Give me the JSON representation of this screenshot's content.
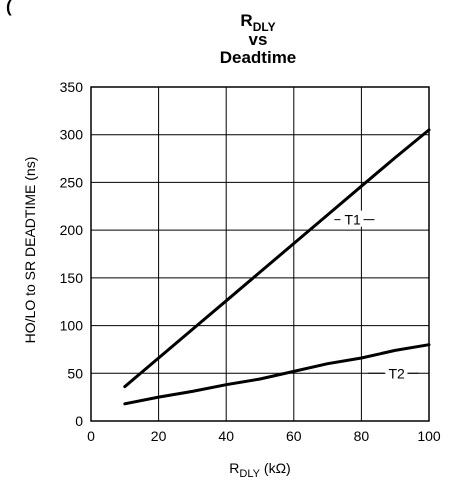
{
  "chart_data": {
    "type": "line",
    "title_top_fragment": "(",
    "title": {
      "line1_main": "R",
      "line1_sub": "DLY",
      "line2": "vs",
      "line3": "Deadtime"
    },
    "xlabel": {
      "main": "R",
      "sub": "DLY",
      "rest": " (kΩ)"
    },
    "ylabel": "HO/LO to SR DEADTIME (ns)",
    "xlim": [
      0,
      100
    ],
    "ylim": [
      0,
      350
    ],
    "x_ticks": [
      0,
      20,
      40,
      60,
      80,
      100
    ],
    "y_ticks": [
      0,
      50,
      100,
      150,
      200,
      250,
      300,
      350
    ],
    "grid": true,
    "series": [
      {
        "name": "T1",
        "color": "#000000",
        "x": [
          10,
          20,
          30,
          40,
          50,
          60,
          70,
          80,
          90,
          100
        ],
        "y": [
          36,
          66,
          96,
          126,
          156,
          186,
          216,
          246,
          276,
          305
        ]
      },
      {
        "name": "T2",
        "color": "#000000",
        "x": [
          10,
          20,
          30,
          40,
          50,
          60,
          70,
          80,
          90,
          100
        ],
        "y": [
          18,
          25,
          31,
          38,
          44,
          52,
          60,
          66,
          74,
          80
        ]
      }
    ],
    "annotations": [
      {
        "series": "T1",
        "label": "T1",
        "x": 75,
        "y": 211,
        "leader_x": [
          72,
          80
        ]
      },
      {
        "series": "T2",
        "label": "T2",
        "x": 88,
        "y": 50,
        "leader_x": [
          82,
          84
        ]
      }
    ]
  }
}
